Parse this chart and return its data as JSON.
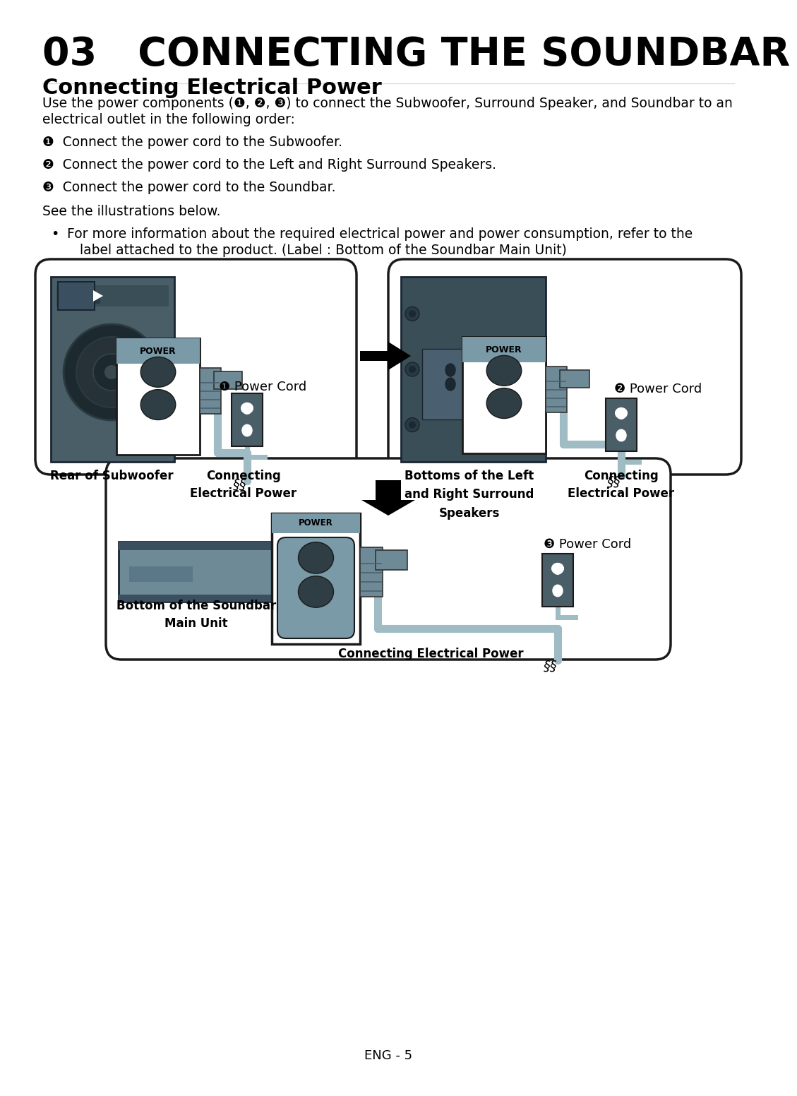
{
  "title": "03   CONNECTING THE SOUNDBAR",
  "subtitle": "Connecting Electrical Power",
  "body_line1": "Use the power components (❶, ❷, ❸) to connect the Subwoofer, Surround Speaker, and Soundbar to an",
  "body_line2": "electrical outlet in the following order:",
  "step1": "❶  Connect the power cord to the Subwoofer.",
  "step2": "❷  Connect the power cord to the Left and Right Surround Speakers.",
  "step3": "❸  Connect the power cord to the Soundbar.",
  "see_text": "See the illustrations below.",
  "bullet_line1": "For more information about the required electrical power and power consumption, refer to the",
  "bullet_line2": "   label attached to the product. (Label : Bottom of the Soundbar Main Unit)",
  "footer": "ENG - 5",
  "bg_color": "#ffffff",
  "text_color": "#000000",
  "gray_dark": "#4a5e68",
  "gray_mid": "#6e8a96",
  "gray_light": "#8faab4",
  "gray_cable": "#9fbbc4",
  "gray_panel": "#7a9aa8",
  "gray_sock": "#2e3e44",
  "outline_color": "#1a1a1a",
  "power_bg": "#8aabb8"
}
